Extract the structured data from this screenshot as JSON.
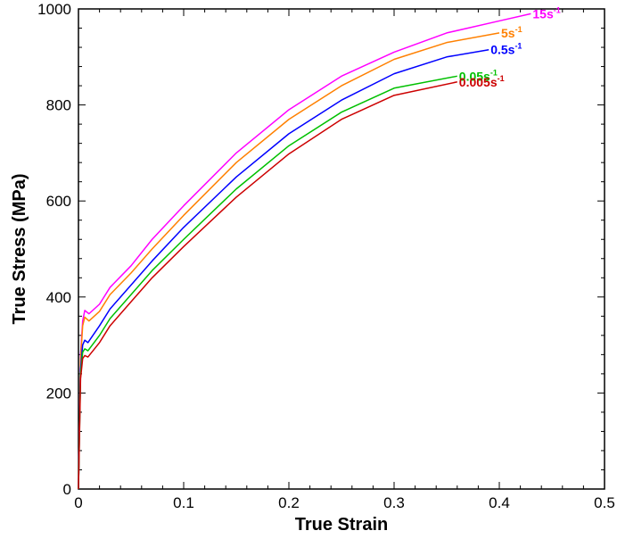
{
  "chart_data": {
    "type": "line",
    "title": "",
    "xlabel": "True Strain",
    "ylabel": "True Stress (MPa)",
    "xlim": [
      0,
      0.5
    ],
    "ylim": [
      0,
      1000
    ],
    "xticks": [
      "0",
      "0.1",
      "0.2",
      "0.3",
      "0.4",
      "0.5"
    ],
    "yticks": [
      "0",
      "200",
      "400",
      "600",
      "800",
      "1000"
    ],
    "grid": false,
    "legend": "inline labels at line ends",
    "series": [
      {
        "name": "15s-1",
        "label_main": "15s",
        "label_sup": "-1",
        "color": "#ff00ff",
        "x": [
          0,
          0.002,
          0.004,
          0.006,
          0.01,
          0.02,
          0.03,
          0.05,
          0.07,
          0.1,
          0.15,
          0.2,
          0.25,
          0.3,
          0.35,
          0.4,
          0.43
        ],
        "y": [
          0,
          280,
          350,
          372,
          365,
          385,
          420,
          465,
          520,
          590,
          700,
          790,
          860,
          910,
          950,
          975,
          990
        ]
      },
      {
        "name": "5s-1",
        "label_main": "5s",
        "label_sup": "-1",
        "color": "#ff8000",
        "x": [
          0,
          0.002,
          0.004,
          0.006,
          0.01,
          0.02,
          0.03,
          0.05,
          0.07,
          0.1,
          0.15,
          0.2,
          0.25,
          0.3,
          0.35,
          0.4
        ],
        "y": [
          0,
          270,
          340,
          358,
          350,
          370,
          405,
          450,
          500,
          570,
          680,
          770,
          840,
          895,
          930,
          950
        ]
      },
      {
        "name": "0.5s-1",
        "label_main": "0.5s",
        "label_sup": "-1",
        "color": "#0000ff",
        "x": [
          0,
          0.002,
          0.004,
          0.006,
          0.009,
          0.02,
          0.03,
          0.05,
          0.07,
          0.1,
          0.15,
          0.2,
          0.25,
          0.3,
          0.35,
          0.39
        ],
        "y": [
          0,
          250,
          300,
          310,
          305,
          340,
          375,
          425,
          475,
          545,
          650,
          740,
          810,
          865,
          900,
          915
        ]
      },
      {
        "name": "0.05s-1",
        "label_main": "0.05s",
        "label_sup": "-1",
        "color": "#00c000",
        "x": [
          0,
          0.002,
          0.004,
          0.006,
          0.009,
          0.02,
          0.03,
          0.05,
          0.07,
          0.1,
          0.15,
          0.2,
          0.25,
          0.3,
          0.36
        ],
        "y": [
          0,
          240,
          285,
          292,
          288,
          320,
          355,
          405,
          455,
          520,
          625,
          715,
          785,
          835,
          860
        ]
      },
      {
        "name": "0.005s-1",
        "label_main": "0.005s",
        "label_sup": "-1",
        "color": "#cc0000",
        "x": [
          0,
          0.002,
          0.004,
          0.006,
          0.009,
          0.02,
          0.03,
          0.05,
          0.07,
          0.1,
          0.15,
          0.2,
          0.25,
          0.3,
          0.36
        ],
        "y": [
          0,
          230,
          272,
          278,
          275,
          305,
          340,
          390,
          440,
          505,
          608,
          698,
          770,
          820,
          848
        ]
      }
    ]
  }
}
